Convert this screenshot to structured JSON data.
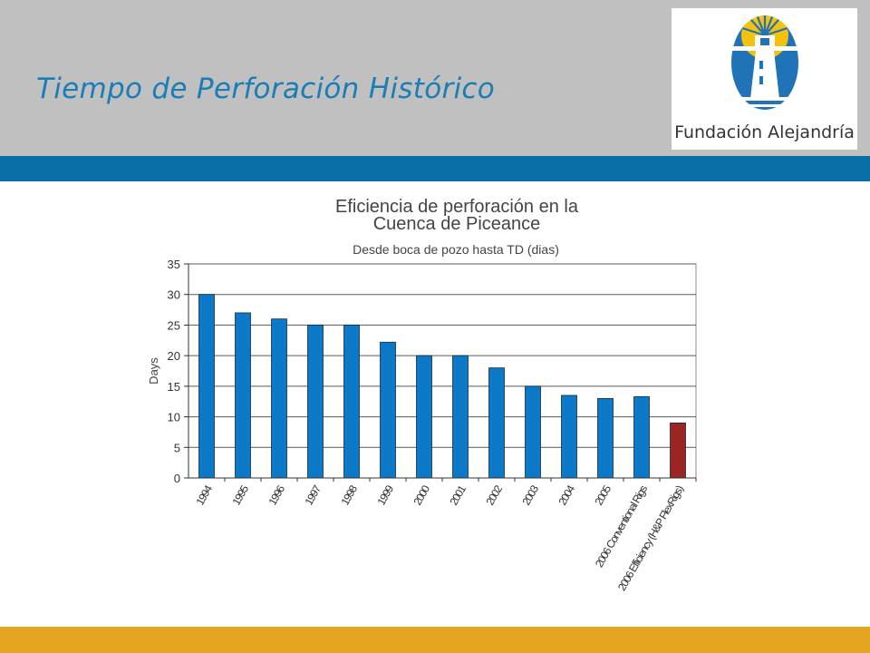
{
  "slide": {
    "title": "Tiempo de Perforación Histórico"
  },
  "logo": {
    "text": "Fundación Alejandría",
    "icon": "lighthouse-icon",
    "colors": {
      "blue": "#1f73b6",
      "yellow": "#f4c20d"
    }
  },
  "colors": {
    "header_band": "#c0c0c0",
    "title": "#1a7db5",
    "stripe_blue": "#0a6fa7",
    "stripe_gold": "#e5a521",
    "bar_blue": "#0b78c8",
    "bar_red": "#9b2424"
  },
  "chart_data": {
    "type": "bar",
    "title": "Eficiencia de perforación en la Cuenca de Piceance",
    "title_lines": [
      "Eficiencia de perforación en la",
      "Cuenca de Piceance"
    ],
    "subtitle": "Desde boca de pozo hasta TD (dias)",
    "ylabel": "Days",
    "xlabel": "",
    "ylim": [
      0,
      35
    ],
    "yticks": [
      0,
      5,
      10,
      15,
      20,
      25,
      30,
      35
    ],
    "grid": true,
    "categories": [
      "1994",
      "1995",
      "1996",
      "1997",
      "1998",
      "1999",
      "2000",
      "2001",
      "2002",
      "2003",
      "2004",
      "2005",
      "2006 Conventional Rigs",
      "2006 Efficiency (H&P FlexRigs)"
    ],
    "values": [
      30,
      27,
      26,
      25,
      25,
      22.2,
      20,
      20,
      18,
      15,
      13.5,
      13,
      13.3,
      9
    ],
    "bar_colors": [
      "#0b78c8",
      "#0b78c8",
      "#0b78c8",
      "#0b78c8",
      "#0b78c8",
      "#0b78c8",
      "#0b78c8",
      "#0b78c8",
      "#0b78c8",
      "#0b78c8",
      "#0b78c8",
      "#0b78c8",
      "#0b78c8",
      "#9b2424"
    ]
  }
}
